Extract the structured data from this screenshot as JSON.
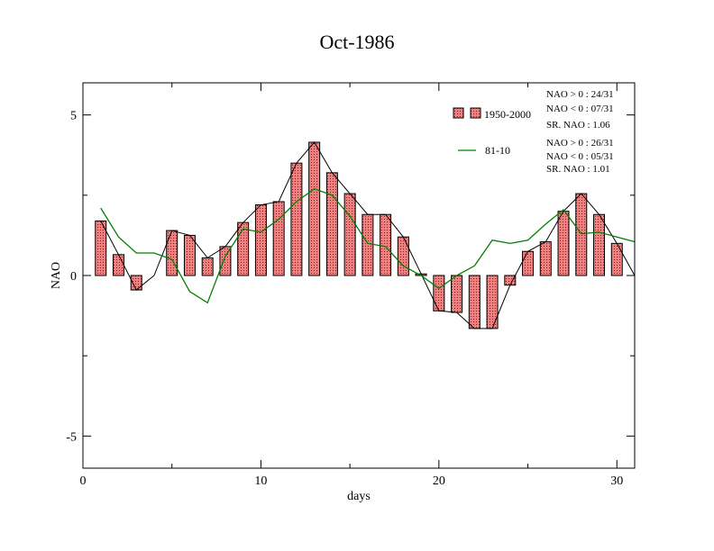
{
  "chart_data": {
    "type": "bar",
    "title": "Oct-1986",
    "xlabel": "days",
    "ylabel": "NAO",
    "xlim": [
      0,
      31
    ],
    "ylim": [
      -6,
      6
    ],
    "xticks": [
      0,
      10,
      20,
      30
    ],
    "yticks": [
      -5,
      0,
      5
    ],
    "grid": false,
    "legend_position": "top-right",
    "x": [
      1,
      2,
      3,
      4,
      5,
      6,
      7,
      8,
      9,
      10,
      11,
      12,
      13,
      14,
      15,
      16,
      17,
      18,
      19,
      20,
      21,
      22,
      23,
      24,
      25,
      26,
      27,
      28,
      29,
      30,
      31
    ],
    "series": [
      {
        "name": "1950-2000",
        "kind": "bar",
        "color": "#f08080",
        "values": [
          1.7,
          0.65,
          -0.45,
          0.0,
          1.4,
          1.25,
          0.55,
          0.9,
          1.65,
          2.2,
          2.3,
          3.5,
          4.15,
          3.2,
          2.55,
          1.9,
          1.9,
          1.2,
          0.05,
          -1.1,
          -1.15,
          -1.65,
          -1.65,
          -0.3,
          0.75,
          1.05,
          2.0,
          2.55,
          1.9,
          1.0,
          0.0
        ]
      },
      {
        "name": "81-10",
        "kind": "line",
        "color": "#008000",
        "values": [
          2.1,
          1.2,
          0.7,
          0.7,
          0.5,
          -0.5,
          -0.85,
          0.6,
          1.45,
          1.35,
          1.75,
          2.3,
          2.7,
          2.5,
          1.85,
          1.0,
          0.9,
          0.3,
          0.0,
          -0.4,
          0.0,
          0.3,
          1.1,
          1.0,
          1.1,
          1.6,
          2.05,
          1.3,
          1.35,
          1.2,
          1.05
        ]
      }
    ],
    "stats": {
      "s1950": [
        "NAO > 0 : 24/31",
        "NAO < 0 : 07/31",
        "SR. NAO :  1.06"
      ],
      "s8110": [
        "NAO > 0 : 26/31",
        "NAO < 0 : 05/31",
        "SR. NAO :  1.01"
      ]
    }
  }
}
